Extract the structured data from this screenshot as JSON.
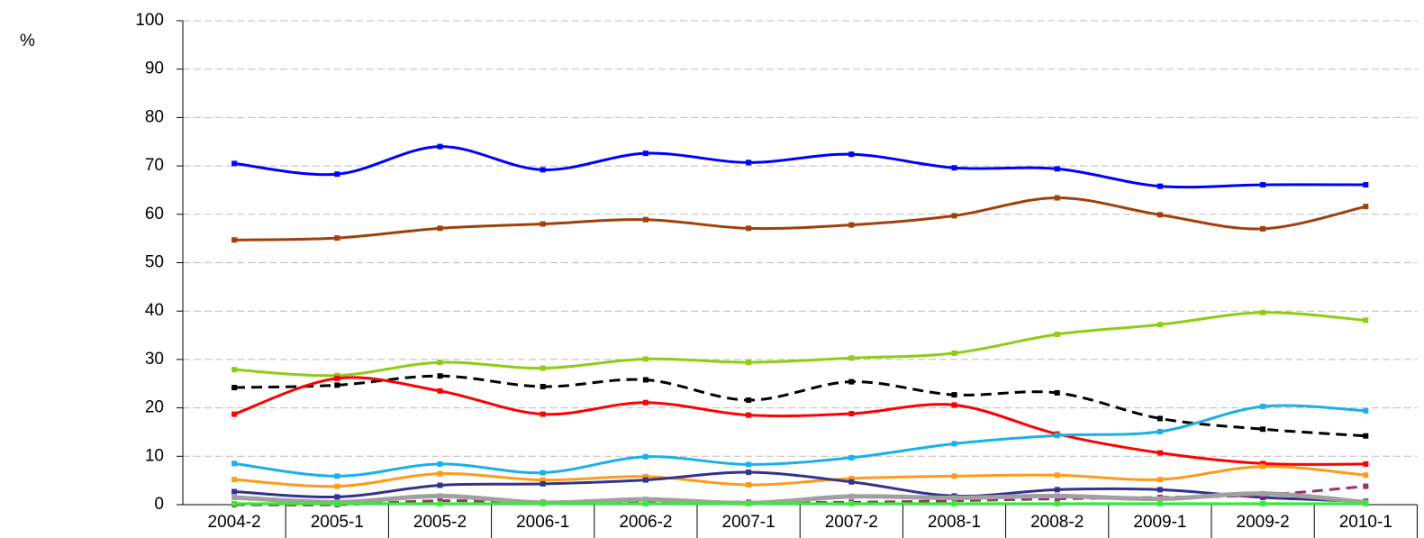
{
  "chart_data": {
    "type": "line",
    "y_label": "%",
    "categories": [
      "2004-2",
      "2005-1",
      "2005-2",
      "2006-1",
      "2006-2",
      "2007-1",
      "2007-2",
      "2008-1",
      "2008-2",
      "2009-1",
      "2009-2",
      "2010-1"
    ],
    "ylim": [
      0,
      100
    ],
    "yticks": [
      0,
      10,
      20,
      30,
      40,
      50,
      60,
      70,
      80,
      90,
      100
    ],
    "grid": true,
    "smooth": true,
    "series": [
      {
        "color": "#0000ff",
        "values": [
          70.5,
          68.3,
          74,
          69.2,
          72.6,
          70.7,
          72.4,
          69.6,
          69.4,
          65.8,
          66.1,
          66.1
        ]
      },
      {
        "color": "#a0400a",
        "values": [
          54.7,
          55.1,
          57.1,
          58,
          58.9,
          57.1,
          57.8,
          59.7,
          63.4,
          59.9,
          57,
          61.6
        ]
      },
      {
        "color": "#8fcc14",
        "values": [
          27.9,
          26.7,
          29.4,
          28.2,
          30.1,
          29.4,
          30.3,
          31.3,
          35.2,
          37.2,
          39.7,
          38.1
        ]
      },
      {
        "color": "#000000",
        "dash": true,
        "values": [
          24.2,
          24.7,
          26.6,
          24.4,
          25.8,
          21.6,
          25.4,
          22.7,
          23.1,
          17.8,
          15.6,
          14.2
        ]
      },
      {
        "color": "#ff0000",
        "values": [
          18.7,
          26.1,
          23.5,
          18.7,
          21.1,
          18.5,
          18.8,
          20.6,
          14.6,
          10.7,
          8.5,
          8.4
        ]
      },
      {
        "color": "#1ab0e8",
        "values": [
          8.5,
          5.9,
          8.4,
          6.6,
          9.9,
          8.3,
          9.7,
          12.6,
          14.3,
          15.1,
          20.3,
          19.4
        ]
      },
      {
        "color": "#ff9a1a",
        "values": [
          5.2,
          3.8,
          6.4,
          5.1,
          5.8,
          4.1,
          5.4,
          5.9,
          6.1,
          5.2,
          7.9,
          6.1
        ]
      },
      {
        "color": "#33338f",
        "values": [
          2.7,
          1.6,
          4,
          4.3,
          5.1,
          6.7,
          4.7,
          1.8,
          3.1,
          3.1,
          1.5,
          0.7
        ]
      },
      {
        "color": "#993366",
        "dash": true,
        "values": [
          0,
          0,
          0.8,
          0.5,
          0.6,
          0.5,
          0.5,
          0.8,
          1.2,
          1.5,
          2,
          3.8
        ]
      },
      {
        "color": "#a0a0a0",
        "values": [
          1.5,
          0.5,
          1.8,
          0.4,
          1.1,
          0.3,
          1.7,
          1.4,
          1.8,
          1.2,
          2.3,
          0.5
        ]
      },
      {
        "color": "#33ee33",
        "values": [
          0.2,
          0.2,
          0.2,
          0.2,
          0.2,
          0.2,
          0.2,
          0.2,
          0.2,
          0.2,
          0.2,
          0.2
        ]
      }
    ]
  }
}
